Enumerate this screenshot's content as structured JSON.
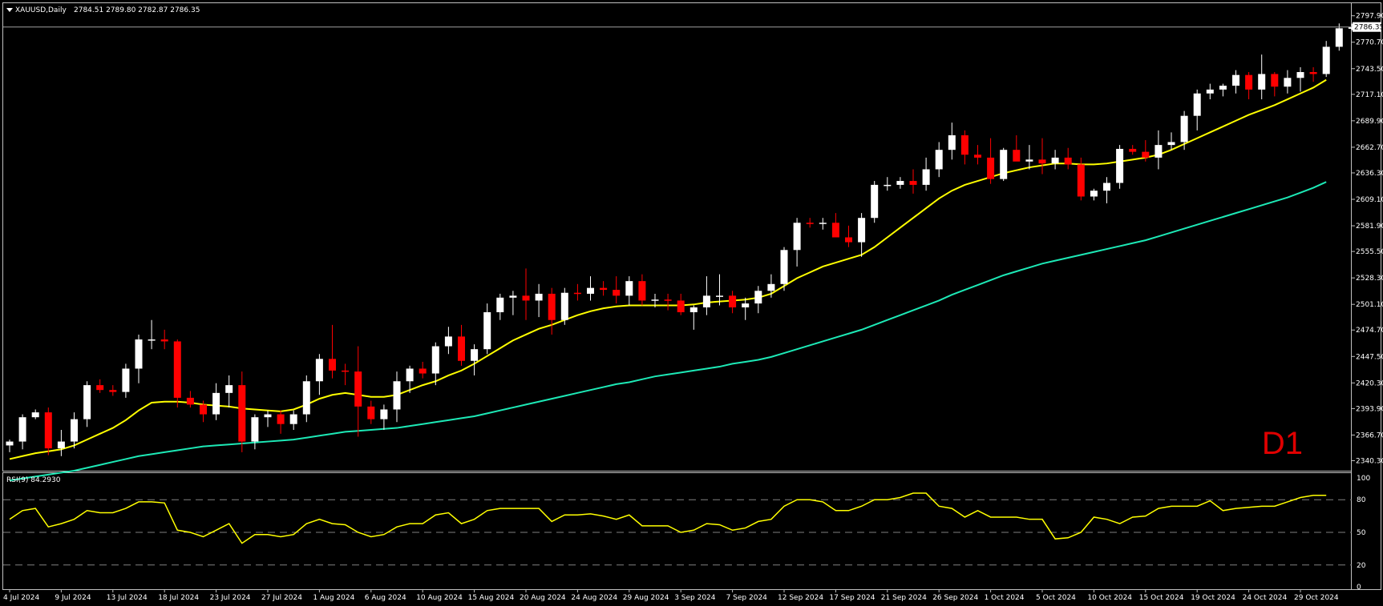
{
  "chart_header": {
    "symbol": "XAUUSD,Daily",
    "ohlc": "2784.51 2789.80 2782.87 2786.35"
  },
  "timeframe_label": "D1",
  "colors": {
    "background": "#000000",
    "bull_candle": "#ffffff",
    "bear_candle": "#ff0000",
    "ma_fast": "#ffff00",
    "ma_slow": "#1de9b6",
    "rsi_line": "#ffff00",
    "grid_dash": "#808080",
    "price_line": "#a0a0a0",
    "timeframe_label": "#e00000"
  },
  "chart_data": [
    {
      "type": "candlestick",
      "title": "XAUUSD,Daily",
      "ylim": [
        2330,
        2810
      ],
      "price_ticks": [
        "2797.90",
        "2770.70",
        "2743.50",
        "2717.10",
        "2689.90",
        "2662.70",
        "2636.30",
        "2609.10",
        "2581.90",
        "2555.50",
        "2528.30",
        "2501.10",
        "2474.70",
        "2447.50",
        "2420.30",
        "2393.90",
        "2366.70",
        "2340.30"
      ],
      "current_price": "2786.35",
      "x_labels": [
        {
          "label": "4 Jul 2024",
          "index": 0
        },
        {
          "label": "9 Jul 2024",
          "index": 4
        },
        {
          "label": "13 Jul 2024",
          "index": 8
        },
        {
          "label": "18 Jul 2024",
          "index": 12
        },
        {
          "label": "23 Jul 2024",
          "index": 16
        },
        {
          "label": "27 Jul 2024",
          "index": 20
        },
        {
          "label": "1 Aug 2024",
          "index": 24
        },
        {
          "label": "6 Aug 2024",
          "index": 28
        },
        {
          "label": "10 Aug 2024",
          "index": 32
        },
        {
          "label": "15 Aug 2024",
          "index": 36
        },
        {
          "label": "20 Aug 2024",
          "index": 40
        },
        {
          "label": "24 Aug 2024",
          "index": 44
        },
        {
          "label": "29 Aug 2024",
          "index": 48
        },
        {
          "label": "3 Sep 2024",
          "index": 52
        },
        {
          "label": "7 Sep 2024",
          "index": 56
        },
        {
          "label": "12 Sep 2024",
          "index": 60
        },
        {
          "label": "17 Sep 2024",
          "index": 64
        },
        {
          "label": "21 Sep 2024",
          "index": 68
        },
        {
          "label": "26 Sep 2024",
          "index": 72
        },
        {
          "label": "1 Oct 2024",
          "index": 76
        },
        {
          "label": "5 Oct 2024",
          "index": 80
        },
        {
          "label": "10 Oct 2024",
          "index": 84
        },
        {
          "label": "15 Oct 2024",
          "index": 88
        },
        {
          "label": "19 Oct 2024",
          "index": 92
        },
        {
          "label": "24 Oct 2024",
          "index": 96
        },
        {
          "label": "29 Oct 2024",
          "index": 100
        }
      ],
      "candles": [
        [
          2356,
          2362,
          2349,
          2360
        ],
        [
          2360,
          2388,
          2352,
          2385
        ],
        [
          2385,
          2393,
          2383,
          2390
        ],
        [
          2390,
          2395,
          2346,
          2353
        ],
        [
          2353,
          2372,
          2345,
          2360
        ],
        [
          2360,
          2390,
          2353,
          2383
        ],
        [
          2383,
          2422,
          2375,
          2418
        ],
        [
          2418,
          2424,
          2410,
          2413
        ],
        [
          2413,
          2418,
          2407,
          2411
        ],
        [
          2411,
          2440,
          2405,
          2435
        ],
        [
          2435,
          2470,
          2420,
          2465
        ],
        [
          2465,
          2485,
          2455,
          2465
        ],
        [
          2465,
          2475,
          2455,
          2463
        ],
        [
          2463,
          2465,
          2395,
          2405
        ],
        [
          2405,
          2412,
          2395,
          2398
        ],
        [
          2398,
          2402,
          2380,
          2388
        ],
        [
          2388,
          2420,
          2382,
          2410
        ],
        [
          2410,
          2428,
          2395,
          2418
        ],
        [
          2418,
          2432,
          2349,
          2360
        ],
        [
          2360,
          2388,
          2352,
          2385
        ],
        [
          2385,
          2392,
          2375,
          2388
        ],
        [
          2388,
          2392,
          2368,
          2378
        ],
        [
          2378,
          2392,
          2372,
          2388
        ],
        [
          2388,
          2428,
          2380,
          2422
        ],
        [
          2422,
          2450,
          2408,
          2445
        ],
        [
          2445,
          2480,
          2425,
          2433
        ],
        [
          2433,
          2440,
          2418,
          2432
        ],
        [
          2432,
          2458,
          2365,
          2396
        ],
        [
          2396,
          2402,
          2378,
          2383
        ],
        [
          2383,
          2398,
          2372,
          2393
        ],
        [
          2393,
          2432,
          2380,
          2422
        ],
        [
          2422,
          2438,
          2410,
          2435
        ],
        [
          2435,
          2442,
          2425,
          2430
        ],
        [
          2430,
          2462,
          2418,
          2458
        ],
        [
          2458,
          2478,
          2450,
          2468
        ],
        [
          2468,
          2480,
          2438,
          2443
        ],
        [
          2443,
          2460,
          2428,
          2455
        ],
        [
          2455,
          2502,
          2450,
          2493
        ],
        [
          2493,
          2512,
          2485,
          2508
        ],
        [
          2508,
          2515,
          2490,
          2510
        ],
        [
          2510,
          2538,
          2485,
          2505
        ],
        [
          2505,
          2522,
          2488,
          2512
        ],
        [
          2512,
          2518,
          2470,
          2485
        ],
        [
          2485,
          2518,
          2480,
          2513
        ],
        [
          2513,
          2522,
          2505,
          2512
        ],
        [
          2512,
          2530,
          2505,
          2518
        ],
        [
          2518,
          2525,
          2510,
          2516
        ],
        [
          2516,
          2530,
          2502,
          2510
        ],
        [
          2510,
          2530,
          2500,
          2525
        ],
        [
          2525,
          2532,
          2500,
          2505
        ],
        [
          2505,
          2512,
          2498,
          2506
        ],
        [
          2506,
          2512,
          2495,
          2505
        ],
        [
          2505,
          2512,
          2490,
          2493
        ],
        [
          2493,
          2500,
          2475,
          2498
        ],
        [
          2498,
          2530,
          2490,
          2510
        ],
        [
          2510,
          2532,
          2500,
          2510
        ],
        [
          2510,
          2515,
          2492,
          2498
        ],
        [
          2498,
          2508,
          2485,
          2502
        ],
        [
          2502,
          2520,
          2492,
          2515
        ],
        [
          2515,
          2532,
          2508,
          2522
        ],
        [
          2522,
          2560,
          2515,
          2557
        ],
        [
          2557,
          2590,
          2540,
          2585
        ],
        [
          2585,
          2590,
          2580,
          2584
        ],
        [
          2584,
          2590,
          2578,
          2585
        ],
        [
          2585,
          2595,
          2570,
          2570
        ],
        [
          2570,
          2582,
          2560,
          2565
        ],
        [
          2565,
          2595,
          2550,
          2590
        ],
        [
          2590,
          2628,
          2585,
          2624
        ],
        [
          2624,
          2632,
          2618,
          2624
        ],
        [
          2624,
          2632,
          2620,
          2628
        ],
        [
          2628,
          2640,
          2615,
          2624
        ],
        [
          2624,
          2652,
          2618,
          2640
        ],
        [
          2640,
          2668,
          2632,
          2660
        ],
        [
          2660,
          2688,
          2650,
          2675
        ],
        [
          2675,
          2680,
          2645,
          2655
        ],
        [
          2655,
          2665,
          2645,
          2652
        ],
        [
          2652,
          2672,
          2625,
          2630
        ],
        [
          2630,
          2662,
          2628,
          2660
        ],
        [
          2660,
          2675,
          2650,
          2648
        ],
        [
          2648,
          2665,
          2640,
          2650
        ],
        [
          2650,
          2672,
          2635,
          2646
        ],
        [
          2646,
          2660,
          2640,
          2652
        ],
        [
          2652,
          2662,
          2640,
          2645
        ],
        [
          2645,
          2652,
          2608,
          2612
        ],
        [
          2612,
          2620,
          2608,
          2618
        ],
        [
          2618,
          2632,
          2605,
          2626
        ],
        [
          2626,
          2665,
          2620,
          2661
        ],
        [
          2661,
          2665,
          2655,
          2658
        ],
        [
          2658,
          2670,
          2648,
          2652
        ],
        [
          2652,
          2680,
          2640,
          2665
        ],
        [
          2665,
          2678,
          2660,
          2668
        ],
        [
          2668,
          2700,
          2660,
          2695
        ],
        [
          2695,
          2722,
          2680,
          2718
        ],
        [
          2718,
          2728,
          2712,
          2722
        ],
        [
          2722,
          2728,
          2715,
          2726
        ],
        [
          2726,
          2742,
          2718,
          2737
        ],
        [
          2737,
          2740,
          2712,
          2722
        ],
        [
          2722,
          2758,
          2712,
          2738
        ],
        [
          2738,
          2740,
          2715,
          2725
        ],
        [
          2725,
          2742,
          2718,
          2734
        ],
        [
          2734,
          2745,
          2720,
          2740
        ],
        [
          2740,
          2745,
          2730,
          2738
        ],
        [
          2738,
          2772,
          2735,
          2766
        ],
        [
          2766,
          2790,
          2762,
          2785
        ],
        [
          2784.51,
          2789.8,
          2782.87,
          2786.35
        ]
      ],
      "ma_fast_series": [
        2342,
        2345,
        2348,
        2350,
        2352,
        2356,
        2362,
        2368,
        2374,
        2382,
        2392,
        2400,
        2401,
        2401,
        2400,
        2398,
        2397,
        2396,
        2394,
        2393,
        2392,
        2391,
        2393,
        2398,
        2404,
        2408,
        2410,
        2408,
        2406,
        2406,
        2408,
        2413,
        2418,
        2422,
        2428,
        2433,
        2440,
        2448,
        2456,
        2464,
        2470,
        2476,
        2480,
        2485,
        2490,
        2494,
        2497,
        2499,
        2500,
        2500,
        2500,
        2500,
        2500,
        2501,
        2503,
        2504,
        2505,
        2506,
        2508,
        2512,
        2520,
        2528,
        2534,
        2540,
        2544,
        2548,
        2552,
        2560,
        2570,
        2580,
        2590,
        2600,
        2610,
        2618,
        2624,
        2628,
        2632,
        2636,
        2639,
        2642,
        2644,
        2646,
        2646,
        2645,
        2645,
        2646,
        2648,
        2650,
        2652,
        2655,
        2660,
        2666,
        2672,
        2678,
        2684,
        2690,
        2696,
        2701,
        2706,
        2712,
        2718,
        2724,
        2732
      ],
      "ma_slow_series": [
        2320,
        2322,
        2324,
        2326,
        2328,
        2330,
        2333,
        2336,
        2339,
        2342,
        2345,
        2347,
        2349,
        2351,
        2353,
        2355,
        2356,
        2357,
        2358,
        2359,
        2360,
        2361,
        2362,
        2364,
        2366,
        2368,
        2370,
        2371,
        2372,
        2373,
        2374,
        2376,
        2378,
        2380,
        2382,
        2384,
        2386,
        2389,
        2392,
        2395,
        2398,
        2401,
        2404,
        2407,
        2410,
        2413,
        2416,
        2419,
        2421,
        2424,
        2427,
        2429,
        2431,
        2433,
        2435,
        2437,
        2440,
        2442,
        2444,
        2447,
        2451,
        2455,
        2459,
        2463,
        2467,
        2471,
        2475,
        2480,
        2485,
        2490,
        2495,
        2500,
        2505,
        2511,
        2516,
        2521,
        2526,
        2531,
        2535,
        2539,
        2543,
        2546,
        2549,
        2552,
        2555,
        2558,
        2561,
        2564,
        2567,
        2571,
        2575,
        2579,
        2583,
        2587,
        2591,
        2595,
        2599,
        2603,
        2607,
        2611,
        2616,
        2621,
        2627
      ]
    },
    {
      "type": "line",
      "title": "RSI(9) 84.2930",
      "ylim": [
        0,
        100
      ],
      "levels": [
        20,
        50,
        80
      ],
      "y_ticks": [
        "100",
        "80",
        "50",
        "20",
        "0"
      ],
      "values": [
        62,
        70,
        72,
        55,
        58,
        62,
        70,
        68,
        68,
        72,
        78,
        78,
        77,
        52,
        50,
        46,
        52,
        58,
        40,
        48,
        48,
        46,
        48,
        58,
        62,
        58,
        57,
        50,
        46,
        48,
        55,
        58,
        58,
        66,
        68,
        58,
        62,
        70,
        72,
        72,
        72,
        72,
        60,
        66,
        66,
        67,
        65,
        62,
        66,
        56,
        56,
        56,
        50,
        52,
        58,
        57,
        52,
        54,
        60,
        62,
        74,
        80,
        80,
        78,
        70,
        70,
        74,
        80,
        80,
        82,
        86,
        86,
        74,
        72,
        64,
        70,
        64,
        64,
        64,
        62,
        62,
        44,
        45,
        50,
        64,
        62,
        58,
        64,
        65,
        72,
        74,
        74,
        74,
        79,
        70,
        72,
        73,
        74,
        74,
        78,
        82,
        84,
        84
      ]
    }
  ]
}
